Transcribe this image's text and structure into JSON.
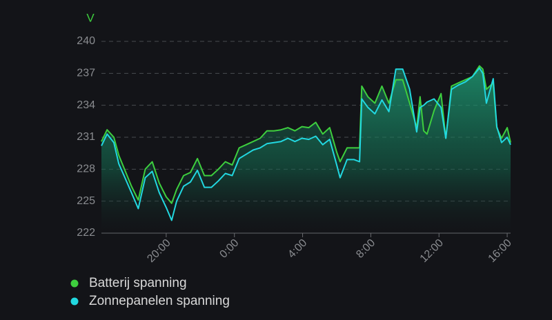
{
  "chart_data": {
    "type": "line",
    "y_label": "V",
    "x": [
      16.2,
      16.53,
      16.93,
      17.22,
      17.55,
      17.96,
      18.36,
      18.77,
      19.18,
      19.59,
      20.0,
      20.32,
      20.61,
      21.02,
      21.42,
      21.83,
      22.24,
      22.65,
      23.06,
      23.47,
      23.87,
      24.28,
      24.69,
      25.1,
      25.51,
      25.91,
      26.32,
      26.73,
      27.14,
      27.55,
      27.96,
      28.36,
      28.77,
      29.18,
      29.59,
      30.0,
      30.2,
      30.61,
      31.02,
      31.34,
      31.47,
      31.83,
      32.24,
      32.65,
      33.06,
      33.47,
      33.87,
      34.28,
      34.69,
      34.89,
      35.1,
      35.3,
      35.71,
      36.12,
      36.4,
      36.73,
      37.14,
      37.55,
      37.96,
      38.37,
      38.57,
      38.78,
      39.18,
      39.39,
      39.67,
      40.0,
      40.2
    ],
    "series": [
      {
        "name": "Batterij spanning",
        "color": "#3ecf3e",
        "values": [
          230.6,
          231.7,
          231.0,
          229.3,
          228.0,
          226.4,
          225.1,
          228.0,
          228.7,
          226.7,
          225.4,
          224.8,
          226.1,
          227.4,
          227.7,
          229.0,
          227.4,
          227.4,
          228.0,
          228.7,
          228.4,
          230.0,
          230.3,
          230.6,
          230.9,
          231.6,
          231.6,
          231.7,
          231.9,
          231.6,
          232.0,
          231.9,
          232.4,
          231.3,
          231.9,
          229.6,
          228.7,
          230.0,
          230.0,
          230.0,
          235.8,
          234.8,
          234.2,
          235.8,
          234.2,
          236.4,
          236.4,
          234.2,
          231.9,
          234.8,
          231.6,
          231.3,
          233.5,
          235.1,
          230.9,
          235.8,
          236.1,
          236.4,
          236.7,
          237.7,
          237.4,
          235.5,
          236.1,
          231.9,
          230.9,
          231.9,
          230.5
        ]
      },
      {
        "name": "Zonnepanelen spanning",
        "color": "#22d8e0",
        "values": [
          230.2,
          231.3,
          230.5,
          228.5,
          227.3,
          225.8,
          224.3,
          227.2,
          227.8,
          225.8,
          224.4,
          223.2,
          225.0,
          226.4,
          226.8,
          227.9,
          226.3,
          226.3,
          226.9,
          227.6,
          227.4,
          229.0,
          229.4,
          229.8,
          230.0,
          230.4,
          230.5,
          230.6,
          230.9,
          230.6,
          230.9,
          230.8,
          231.1,
          230.3,
          230.8,
          228.4,
          227.2,
          228.9,
          228.9,
          228.7,
          234.6,
          233.8,
          233.2,
          234.5,
          233.4,
          237.4,
          237.4,
          235.5,
          231.5,
          233.8,
          234.0,
          234.3,
          234.6,
          233.8,
          230.9,
          235.5,
          235.9,
          236.2,
          236.7,
          237.5,
          237.0,
          234.2,
          236.5,
          232.0,
          230.5,
          231.0,
          230.3
        ]
      }
    ],
    "xlim": [
      16.2,
      40.2
    ],
    "xticks": [
      {
        "value": 20,
        "label": "20:00"
      },
      {
        "value": 24,
        "label": "0:00"
      },
      {
        "value": 28,
        "label": "4:00"
      },
      {
        "value": 32,
        "label": "8:00"
      },
      {
        "value": 36,
        "label": "12:00"
      },
      {
        "value": 40,
        "label": "16:00"
      }
    ],
    "ylim": [
      222,
      240
    ],
    "yticks": [
      222,
      225,
      228,
      231,
      234,
      237,
      240
    ],
    "grid": true
  }
}
